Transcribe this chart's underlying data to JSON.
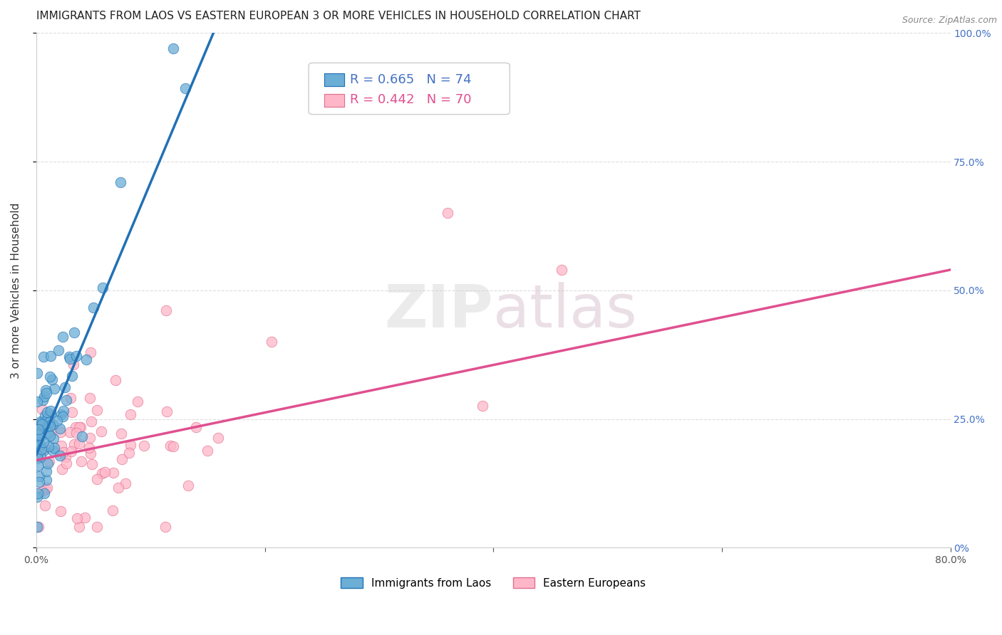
{
  "title": "IMMIGRANTS FROM LAOS VS EASTERN EUROPEAN 3 OR MORE VEHICLES IN HOUSEHOLD CORRELATION CHART",
  "source": "Source: ZipAtlas.com",
  "ylabel": "3 or more Vehicles in Household",
  "xlim": [
    0.0,
    0.8
  ],
  "ylim": [
    0.0,
    1.0
  ],
  "xticks": [
    0.0,
    0.2,
    0.4,
    0.6,
    0.8
  ],
  "xtick_labels": [
    "0.0%",
    "",
    "",
    "",
    "80.0%"
  ],
  "yticks": [
    0.0,
    0.25,
    0.5,
    0.75,
    1.0
  ],
  "ytick_labels_right": [
    "0%",
    "25.0%",
    "50.0%",
    "75.0%",
    "100.0%"
  ],
  "watermark": "ZIPatlas",
  "series_blue": {
    "name": "Immigrants from Laos",
    "color": "#6baed6",
    "edge_color": "#2171b5",
    "line_color": "#2171b5",
    "R": 0.665,
    "N": 74,
    "trend_x0": 0.0,
    "trend_y0": 0.18,
    "trend_x1": 0.155,
    "trend_y1": 1.0
  },
  "series_pink": {
    "name": "Eastern Europeans",
    "color": "#ffb6c8",
    "edge_color": "#e07090",
    "line_color": "#e05090",
    "R": 0.442,
    "N": 70,
    "trend_x0": 0.0,
    "trend_y0": 0.17,
    "trend_x1": 0.8,
    "trend_y1": 0.54
  },
  "grid_color": "#dddddd",
  "background_color": "#ffffff",
  "title_fontsize": 11,
  "axis_label_fontsize": 11,
  "tick_fontsize": 10,
  "legend_fontsize": 13,
  "source_fontsize": 9,
  "watermark_fontsize": 60,
  "marker_size": 110
}
